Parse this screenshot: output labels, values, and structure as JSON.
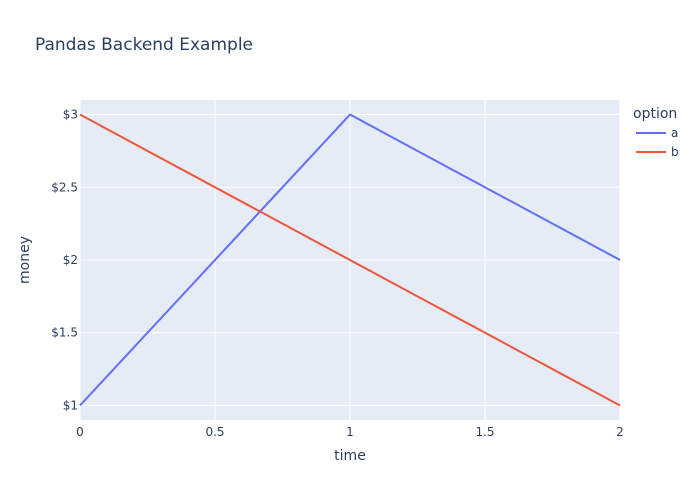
{
  "chart_data": {
    "type": "line",
    "title": "Pandas Backend Example",
    "xlabel": "time",
    "ylabel": "money",
    "x": [
      0,
      1,
      2
    ],
    "xlim": [
      0,
      2
    ],
    "ylim": [
      0.9,
      3.1
    ],
    "x_ticks": [
      0,
      0.5,
      1,
      1.5,
      2
    ],
    "x_tick_labels": [
      "0",
      "0.5",
      "1",
      "1.5",
      "2"
    ],
    "y_ticks": [
      1,
      1.5,
      2,
      2.5,
      3
    ],
    "y_tick_labels": [
      "$1",
      "$1.5",
      "$2",
      "$2.5",
      "$3"
    ],
    "grid": true,
    "legend": {
      "title": "option",
      "placement": "top-right, outside plot"
    },
    "series": [
      {
        "name": "a",
        "values": [
          1,
          3,
          2
        ],
        "color": "#636efa"
      },
      {
        "name": "b",
        "values": [
          3,
          2,
          1
        ],
        "color": "#EF553B"
      }
    ],
    "colors": {
      "plot_background": "#E5ECF6",
      "grid": "#ffffff",
      "text": "#2a3f5f"
    }
  }
}
